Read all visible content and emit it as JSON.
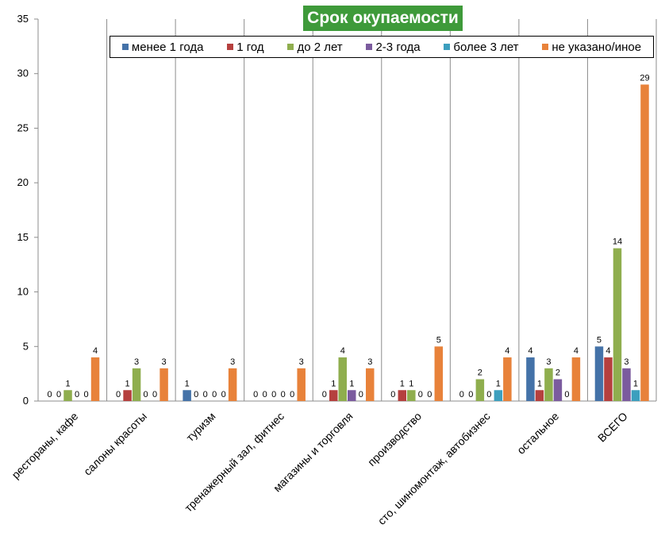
{
  "chart_data": {
    "type": "bar",
    "title": "Срок окупаемости",
    "xlabel": "",
    "ylabel": "",
    "ylim": [
      0,
      35
    ],
    "yticks": [
      0,
      5,
      10,
      15,
      20,
      25,
      30,
      35
    ],
    "grid": "vertical",
    "legend_position": "top",
    "categories": [
      "рестораны, кафе",
      "салоны красоты",
      "туризм",
      "тренажерный зал, фитнес",
      "магазины и торговля",
      "производство",
      "сто, шиномонтаж, автобизнес",
      "остальное",
      "ВСЕГО"
    ],
    "series": [
      {
        "name": "менее 1 года",
        "color": "#4472a8",
        "values": [
          0,
          0,
          1,
          0,
          0,
          0,
          0,
          4,
          5
        ]
      },
      {
        "name": "1 год",
        "color": "#b5403e",
        "values": [
          0,
          1,
          0,
          0,
          1,
          1,
          0,
          1,
          4
        ]
      },
      {
        "name": "до 2 лет",
        "color": "#8fae4e",
        "values": [
          1,
          3,
          0,
          0,
          4,
          1,
          2,
          3,
          14
        ]
      },
      {
        "name": "2-3 года",
        "color": "#7b5b9e",
        "values": [
          0,
          0,
          0,
          0,
          1,
          0,
          0,
          2,
          3
        ]
      },
      {
        "name": "более 3 лет",
        "color": "#3c9fbe",
        "values": [
          0,
          0,
          0,
          0,
          0,
          0,
          1,
          0,
          1
        ]
      },
      {
        "name": "не указано/иное",
        "color": "#e8823a",
        "values": [
          4,
          3,
          3,
          3,
          3,
          5,
          4,
          4,
          29
        ]
      }
    ]
  }
}
